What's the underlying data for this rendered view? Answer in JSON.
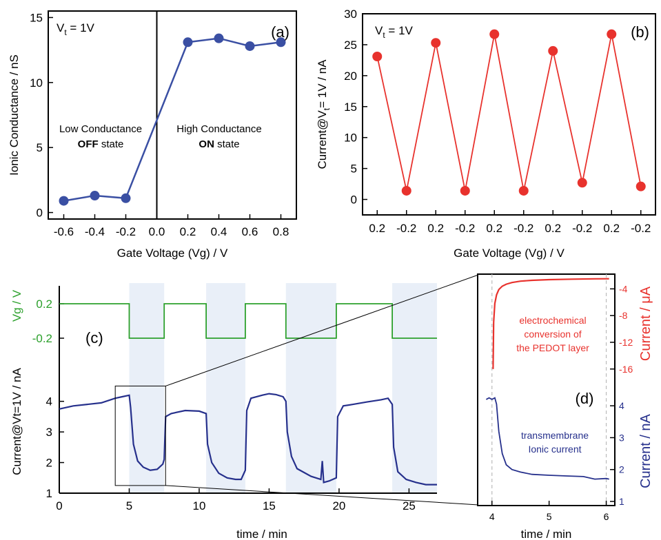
{
  "chart_data": [
    {
      "panel": "(a)",
      "type": "line",
      "annotation": "1V",
      "annotation_prefix": "V",
      "annotation_sub": "t",
      "annotation_eq": " = ",
      "xlabel": "Gate Voltage (Vg) / V",
      "ylabel": "Ionic Conductance / nS",
      "xlim": [
        -0.7,
        0.9
      ],
      "ylim": [
        -0.5,
        15.5
      ],
      "xticks": [
        "-0.6",
        "-0.4",
        "-0.2",
        "0.0",
        "0.2",
        "0.4",
        "0.6",
        "0.8"
      ],
      "xtick_values": [
        -0.6,
        -0.4,
        -0.2,
        0.0,
        0.2,
        0.4,
        0.6,
        0.8
      ],
      "yticks": [
        "0",
        "5",
        "10",
        "15"
      ],
      "ytick_values": [
        0,
        5,
        10,
        15
      ],
      "series": [
        {
          "x": [
            -0.6,
            -0.4,
            -0.2,
            0.2,
            0.4,
            0.6,
            0.8
          ],
          "y": [
            0.9,
            1.3,
            1.1,
            13.1,
            13.4,
            12.8,
            13.1
          ],
          "color": "#3a4fa3"
        }
      ],
      "divider_x": 0.0,
      "region_labels": [
        {
          "line1": "Low Conductance",
          "line2_bold": "OFF",
          "line2_rest": " state"
        },
        {
          "line1": "High Conductance",
          "line2_bold": "ON",
          "line2_rest": " state"
        }
      ]
    },
    {
      "panel": "(b)",
      "type": "line",
      "annotation": "1V",
      "annotation_prefix": "V",
      "annotation_sub": "t",
      "annotation_eq": " = ",
      "xlabel": "Gate Voltage (Vg) / V",
      "ylabel_parts": [
        "Current@V",
        "t",
        "= 1V / nA"
      ],
      "ylim": [
        -2.5,
        30
      ],
      "categories": [
        "0.2",
        "-0.2",
        "0.2",
        "-0.2",
        "0.2",
        "-0.2",
        "0.2",
        "-0.2",
        "0.2",
        "-0.2"
      ],
      "yticks": [
        "0",
        "5",
        "10",
        "15",
        "20",
        "25",
        "30"
      ],
      "ytick_values": [
        0,
        5,
        10,
        15,
        20,
        25,
        30
      ],
      "series": [
        {
          "values": [
            23.1,
            1.4,
            25.3,
            1.4,
            26.7,
            1.4,
            24.0,
            2.7,
            26.7,
            2.1
          ],
          "color": "#e8322d"
        }
      ]
    },
    {
      "panel": "(c)",
      "type": "line",
      "xlabel": "time / min",
      "ylabel": "Current@Vt=1V / nA",
      "ylabel_top": "Vg / V",
      "xlim": [
        0,
        27
      ],
      "ylim": [
        1,
        4.6
      ],
      "xticks": [
        "0",
        "5",
        "10",
        "15",
        "20",
        "25"
      ],
      "xtick_values": [
        0,
        5,
        10,
        15,
        20,
        25
      ],
      "yticks": [
        "1",
        "2",
        "3",
        "4"
      ],
      "ytick_values": [
        1,
        2,
        3,
        4
      ],
      "vg_ticks": [
        "0.2",
        "-0.2"
      ],
      "vg_tick_values": [
        0.2,
        -0.2
      ],
      "vg_segments": [
        {
          "t0": 0,
          "t1": 5.0,
          "v": 0.2
        },
        {
          "t0": 5.0,
          "t1": 7.5,
          "v": -0.2
        },
        {
          "t0": 7.5,
          "t1": 10.5,
          "v": 0.2
        },
        {
          "t0": 10.5,
          "t1": 13.3,
          "v": -0.2
        },
        {
          "t0": 13.3,
          "t1": 16.2,
          "v": 0.2
        },
        {
          "t0": 16.2,
          "t1": 19.8,
          "v": -0.2
        },
        {
          "t0": 19.8,
          "t1": 23.8,
          "v": 0.2
        },
        {
          "t0": 23.8,
          "t1": 27.0,
          "v": -0.2
        }
      ],
      "shaded_intervals": [
        [
          5.0,
          7.5
        ],
        [
          10.5,
          13.3
        ],
        [
          16.2,
          19.8
        ],
        [
          23.8,
          27.0
        ]
      ],
      "current_trace": {
        "t": [
          0,
          1,
          2,
          3,
          4,
          4.5,
          5.0,
          5.1,
          5.3,
          5.6,
          6.0,
          6.5,
          7.0,
          7.4,
          7.5,
          7.6,
          8.0,
          9.0,
          10.0,
          10.5,
          10.6,
          10.9,
          11.4,
          12.0,
          12.6,
          13.0,
          13.3,
          13.4,
          13.7,
          14.5,
          15.0,
          15.5,
          16.0,
          16.2,
          16.3,
          16.6,
          17.0,
          18.0,
          18.7,
          18.8,
          18.9,
          19.3,
          19.8,
          19.9,
          20.3,
          21.0,
          22.0,
          23.0,
          23.5,
          23.8,
          23.9,
          24.2,
          24.8,
          25.5,
          26.2,
          27.0
        ],
        "values": [
          3.75,
          3.85,
          3.9,
          3.95,
          4.1,
          4.15,
          4.2,
          3.8,
          2.6,
          2.05,
          1.85,
          1.75,
          1.78,
          1.95,
          2.1,
          3.5,
          3.6,
          3.7,
          3.68,
          3.6,
          2.6,
          2.0,
          1.65,
          1.5,
          1.45,
          1.45,
          1.75,
          3.7,
          4.1,
          4.2,
          4.25,
          4.22,
          4.15,
          4.0,
          3.0,
          2.2,
          1.8,
          1.55,
          1.45,
          2.05,
          1.35,
          1.4,
          1.5,
          3.5,
          3.85,
          3.9,
          3.98,
          4.05,
          4.1,
          3.9,
          2.5,
          1.7,
          1.45,
          1.35,
          1.28,
          1.28
        ],
        "color": "#26308c"
      },
      "inset_box": {
        "t0": 4.0,
        "t1": 7.6,
        "y0": 1.25,
        "y1": 4.5
      }
    },
    {
      "panel": "(d)",
      "type": "line",
      "xlabel": "time / min",
      "ylabel_top": "Current / μA",
      "ylabel_bottom": "Current / nA",
      "xlim": [
        3.75,
        6.15
      ],
      "xticks": [
        "4",
        "5",
        "6"
      ],
      "xtick_values": [
        4,
        5,
        6
      ],
      "top_ylim": [
        -18.5,
        -2
      ],
      "top_yticks": [
        "-4",
        "-8",
        "-12",
        "-16"
      ],
      "top_ytick_values": [
        -4,
        -8,
        -12,
        -16
      ],
      "bottom_ylim": [
        1,
        4.5
      ],
      "bottom_yticks": [
        "1",
        "2",
        "3",
        "4"
      ],
      "bottom_ytick_values": [
        1,
        2,
        3,
        4
      ],
      "dashed_x": [
        4,
        6
      ],
      "top_series": {
        "t": [
          4.02,
          4.03,
          4.05,
          4.08,
          4.12,
          4.18,
          4.25,
          4.35,
          4.5,
          4.7,
          5.0,
          5.4,
          5.8,
          6.05
        ],
        "values": [
          -16.0,
          -9.0,
          -6.2,
          -4.9,
          -4.1,
          -3.6,
          -3.3,
          -3.05,
          -2.85,
          -2.72,
          -2.62,
          -2.55,
          -2.5,
          -2.48
        ],
        "color": "#e8322d",
        "label_lines": [
          "electrochemical",
          "conversion of",
          "the PEDOT layer"
        ]
      },
      "bottom_series": {
        "t": [
          3.9,
          3.95,
          4.0,
          4.05,
          4.08,
          4.12,
          4.18,
          4.25,
          4.35,
          4.5,
          4.7,
          5.0,
          5.3,
          5.6,
          5.8,
          6.0,
          6.05
        ],
        "values": [
          4.2,
          4.25,
          4.2,
          4.25,
          4.05,
          3.2,
          2.5,
          2.15,
          2.0,
          1.92,
          1.85,
          1.82,
          1.8,
          1.78,
          1.7,
          1.72,
          1.7
        ],
        "color": "#26308c",
        "label_lines": [
          "transmembrane",
          "Ionic current"
        ]
      }
    }
  ]
}
